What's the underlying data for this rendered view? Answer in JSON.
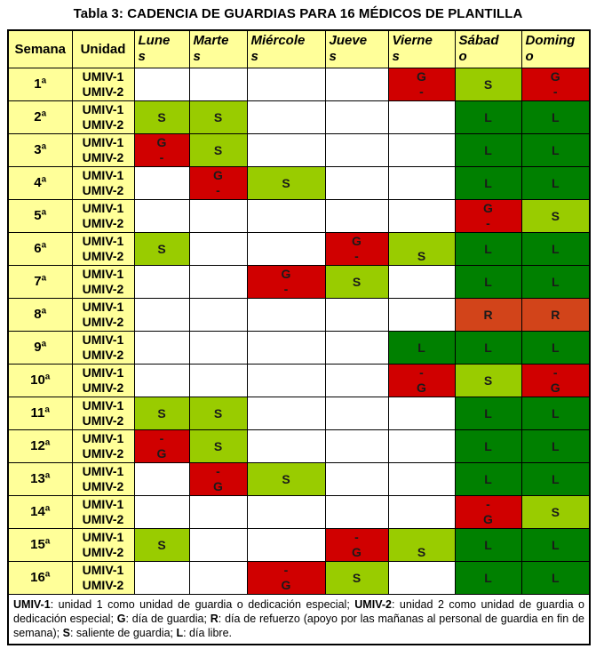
{
  "title": "Tabla 3: CADENCIA DE GUARDIAS PARA 16 MÉDICOS DE PLANTILLA",
  "colors": {
    "header_bg": "#FFFF99",
    "guard": "#D00000",
    "saliente": "#99CC00",
    "libre": "#008000",
    "refuerzo": "#D2441A",
    "border": "#000000",
    "letter": "#1A1A1A"
  },
  "table": {
    "headers": [
      "Semana",
      "Unidad",
      "Lunes",
      "Martes",
      "Miércoles",
      "Jueves",
      "Viernes",
      "Sábado",
      "Domingo"
    ],
    "unit_rows": [
      "UMIV-1",
      "UMIV-2"
    ],
    "weeks": [
      {
        "label": "1ª",
        "cells": [
          "",
          "",
          "",
          "",
          "G-",
          "S",
          "G-"
        ]
      },
      {
        "label": "2ª",
        "cells": [
          "S",
          "S",
          "",
          "",
          "",
          "L",
          "L"
        ]
      },
      {
        "label": "3ª",
        "cells": [
          "G-",
          "S",
          "",
          "",
          "",
          "L",
          "L"
        ]
      },
      {
        "label": "4ª",
        "cells": [
          "",
          "G-",
          "S",
          "",
          "",
          "L",
          "L"
        ]
      },
      {
        "label": "5ª",
        "cells": [
          "",
          "",
          "",
          "",
          "",
          "G-",
          "S"
        ]
      },
      {
        "label": "6ª",
        "cells": [
          "S",
          "",
          "",
          "G-",
          "S2",
          "L",
          "L"
        ]
      },
      {
        "label": "7ª",
        "cells": [
          "",
          "",
          "G-",
          "S",
          "",
          "L",
          "L"
        ]
      },
      {
        "label": "8ª",
        "cells": [
          "",
          "",
          "",
          "",
          "",
          "R",
          "R"
        ]
      },
      {
        "label": "9ª",
        "cells": [
          "",
          "",
          "",
          "",
          "L",
          "L",
          "L"
        ]
      },
      {
        "label": "10ª",
        "cells": [
          "",
          "",
          "",
          "",
          "-G",
          "S",
          "-G"
        ]
      },
      {
        "label": "11ª",
        "cells": [
          "S",
          "S",
          "",
          "",
          "",
          "L",
          "L"
        ]
      },
      {
        "label": "12ª",
        "cells": [
          "-G",
          "S",
          "",
          "",
          "",
          "L",
          "L"
        ]
      },
      {
        "label": "13ª",
        "cells": [
          "",
          "-G",
          "S",
          "",
          "",
          "L",
          "L"
        ]
      },
      {
        "label": "14ª",
        "cells": [
          "",
          "",
          "",
          "",
          "",
          "-G",
          "S"
        ]
      },
      {
        "label": "15ª",
        "cells": [
          "S",
          "",
          "",
          "-G",
          "S2",
          "L",
          "L"
        ]
      },
      {
        "label": "16ª",
        "cells": [
          "",
          "",
          "-G",
          "S",
          "",
          "L",
          "L"
        ]
      }
    ],
    "legend_codes": {
      "G": "día de guardia",
      "R": "día de refuerzo",
      "S": "saliente de guardia",
      "L": "día libre"
    }
  },
  "footnote": {
    "segments": [
      {
        "text": "UMIV-1",
        "bold": true
      },
      {
        "text": ": unidad 1 como unidad de guardia o dedicación especial; ",
        "bold": false
      },
      {
        "text": "UMIV-2",
        "bold": true
      },
      {
        "text": ": unidad 2 como unidad de guardia o dedicación especial; ",
        "bold": false
      },
      {
        "text": "G",
        "bold": true
      },
      {
        "text": ": día de guardia; ",
        "bold": false
      },
      {
        "text": "R",
        "bold": true
      },
      {
        "text": ": día de refuerzo (apoyo por las mañanas al personal de guardia en fin de semana); ",
        "bold": false
      },
      {
        "text": "S",
        "bold": true
      },
      {
        "text": ": saliente de guardia; ",
        "bold": false
      },
      {
        "text": "L",
        "bold": true
      },
      {
        "text": ": día libre.",
        "bold": false
      }
    ]
  }
}
